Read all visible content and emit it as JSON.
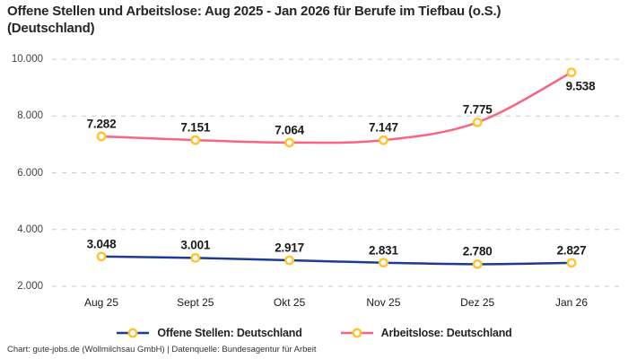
{
  "header": {
    "title": "Offene Stellen und Arbeitslose: Aug 2025 - Jan 2026 für Berufe im Tiefbau (o.S.)\n(Deutschland)"
  },
  "footer": {
    "credit": "Chart: gute-jobs.de (Wollmilchsau GmbH) | Datenquelle: Bundesagentur für Arbeit"
  },
  "colors": {
    "offene_stellen_line": "#1e3a93",
    "arbeitslose_line": "#fa6482",
    "marker_ring": "#ffc32b",
    "marker_fill": "#ffffff",
    "grid": "#c9c9c9",
    "title_text": "#262626"
  },
  "chart_data": {
    "type": "line",
    "title": "Offene Stellen und Arbeitslose: Aug 2025 - Jan 2026 für Berufe im Tiefbau (o.S.) (Deutschland)",
    "categories": [
      "Aug 25",
      "Sept 25",
      "Okt 25",
      "Nov 25",
      "Dez 25",
      "Jan 26"
    ],
    "series": [
      {
        "name": "Offene Stellen: Deutschland",
        "values": [
          3048,
          3001,
          2917,
          2831,
          2780,
          2827
        ],
        "labels": [
          "3.048",
          "3.001",
          "2.917",
          "2.831",
          "2.780",
          "2.827"
        ],
        "color": "#1e3a93"
      },
      {
        "name": "Arbeitslose: Deutschland",
        "values": [
          7282,
          7151,
          7064,
          7147,
          7775,
          9538
        ],
        "labels": [
          "7.282",
          "7.151",
          "7.064",
          "7.147",
          "7.775",
          "9.538"
        ],
        "color": "#fa6482"
      }
    ],
    "yticks": {
      "values": [
        2000,
        4000,
        6000,
        8000,
        10000
      ],
      "labels": [
        "2.000",
        "4.000",
        "6.000",
        "8.000",
        "10.000"
      ]
    },
    "ylim": [
      2000,
      10000
    ],
    "xlabel": "",
    "ylabel": "",
    "grid": "horizontal-dashed",
    "legend_position": "bottom",
    "marker_style": "ring"
  }
}
